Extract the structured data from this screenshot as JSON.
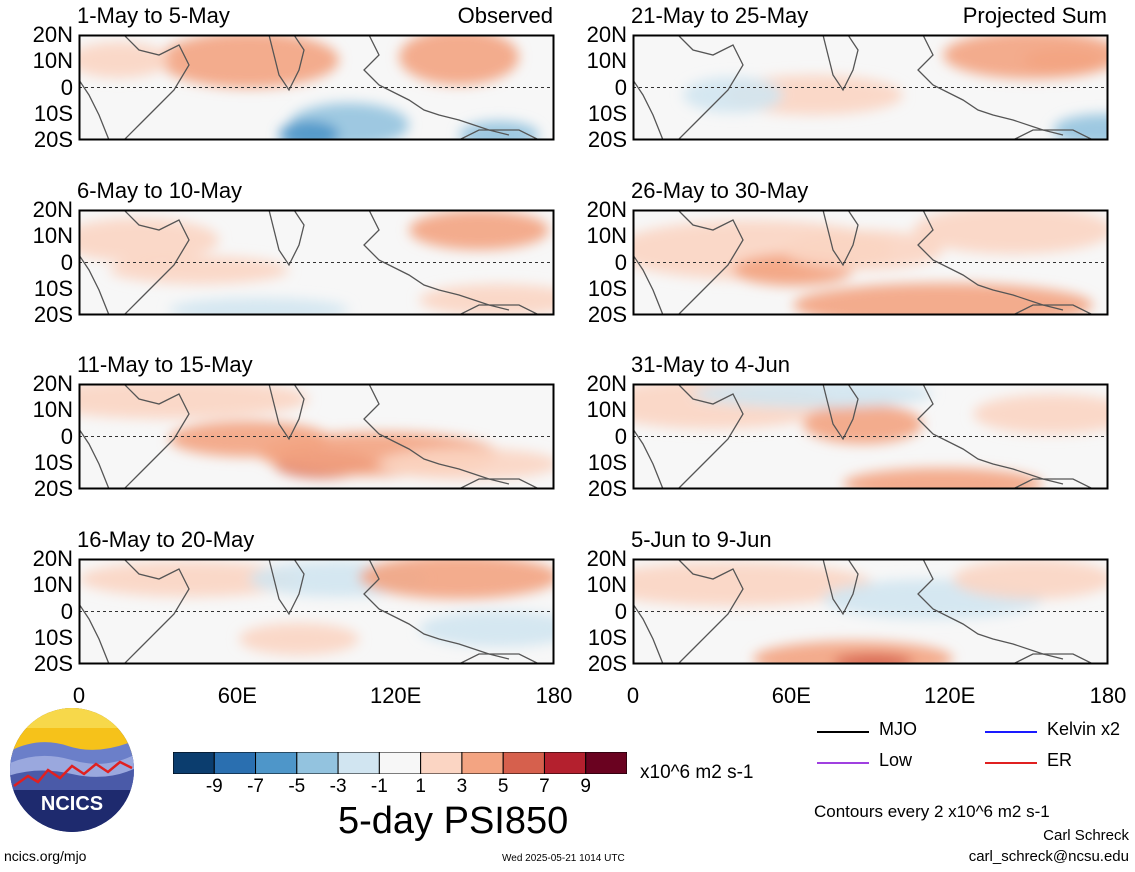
{
  "panels": [
    {
      "title": "1-May to 5-May",
      "tag": "Observed"
    },
    {
      "title": "6-May to 10-May",
      "tag": ""
    },
    {
      "title": "11-May to 15-May",
      "tag": ""
    },
    {
      "title": "16-May to 20-May",
      "tag": ""
    },
    {
      "title": "21-May to 25-May",
      "tag": "Projected Sum"
    },
    {
      "title": "26-May to 30-May",
      "tag": ""
    },
    {
      "title": "31-May to 4-Jun",
      "tag": ""
    },
    {
      "title": "5-Jun to 9-Jun",
      "tag": ""
    }
  ],
  "lat_labels": [
    "20N",
    "10N",
    "0",
    "10S",
    "20S"
  ],
  "lon_labels": [
    "0",
    "60E",
    "120E",
    "180"
  ],
  "colorbar": {
    "colors": [
      "#0b3d6e",
      "#2a6fb0",
      "#4e96c9",
      "#93c3df",
      "#d1e5f1",
      "#f7f7f7",
      "#fbd5c3",
      "#f3a482",
      "#d6604d",
      "#b4202e",
      "#6a0220"
    ],
    "labels": [
      "-9",
      "-7",
      "-5",
      "-3",
      "-1",
      "1",
      "3",
      "5",
      "7",
      "9"
    ],
    "units": "x10^6 m2 s-1"
  },
  "main_title": "5-day PSI850",
  "legend": [
    {
      "label": "MJO",
      "color": "#000000"
    },
    {
      "label": "Kelvin x2",
      "color": "#1a1aff"
    },
    {
      "label": "Low",
      "color": "#a040e0"
    },
    {
      "label": "ER",
      "color": "#e02020"
    }
  ],
  "contour_note": "Contours every 2 x10^6 m2 s-1",
  "author": "Carl Schreck",
  "email": "carl_schreck@ncsu.edu",
  "url": "ncics.org/mjo",
  "timestamp": "Wed 2025-05-21 1014 UTC",
  "logo_text": "NCICS"
}
